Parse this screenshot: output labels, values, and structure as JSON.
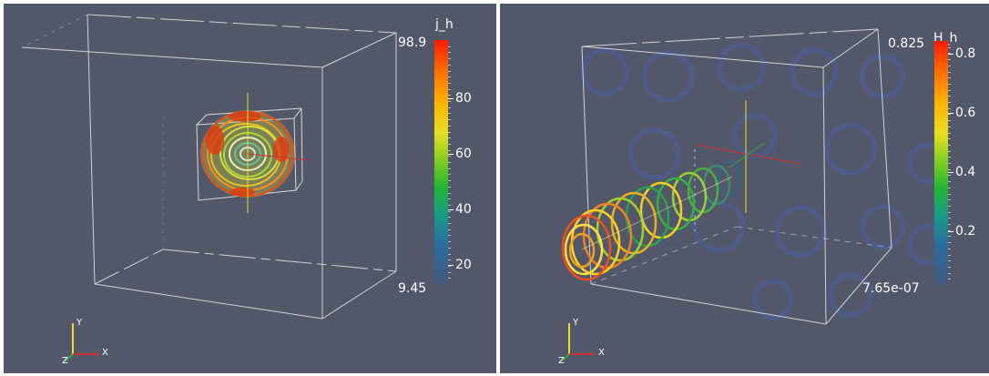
{
  "left_view": {
    "colorbar": {
      "title": "j_h",
      "max_label": "98.9",
      "min_label": "9.45",
      "ticks": [
        "80",
        "60",
        "40",
        "20"
      ]
    }
  },
  "right_view": {
    "colorbar": {
      "title": "H_h",
      "max_label": "0.825",
      "min_label": "7.65e-07",
      "ticks": [
        "0.8",
        "0.6",
        "0.4",
        "0.2"
      ]
    }
  },
  "orientation_axes": {
    "y": "Y",
    "x": "X",
    "z": "Z"
  },
  "colors": {
    "background": "#525769",
    "box": "#e8e8e8",
    "x_axis": "#d03030",
    "y_axis": "#e8e030",
    "z_axis": "#30b040"
  }
}
